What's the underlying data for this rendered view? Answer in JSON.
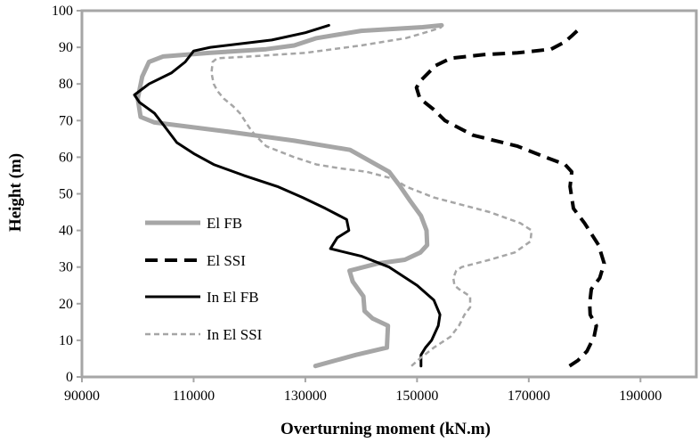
{
  "chart_data": {
    "type": "line",
    "title": "",
    "xlabel": "Overturning moment (kN.m)",
    "ylabel": "Height (m)",
    "xlim": [
      90000,
      200000
    ],
    "ylim": [
      0,
      100
    ],
    "xticks": [
      90000,
      110000,
      130000,
      150000,
      170000,
      190000
    ],
    "yticks": [
      0,
      10,
      20,
      30,
      40,
      50,
      60,
      70,
      80,
      90,
      100
    ],
    "grid": false,
    "legend_position": "left",
    "series": [
      {
        "name": "El FB",
        "color": "#a6a6a6",
        "style": "solid-thick",
        "points": [
          [
            131800,
            3
          ],
          [
            139000,
            6
          ],
          [
            144600,
            8
          ],
          [
            144800,
            14
          ],
          [
            142000,
            16
          ],
          [
            140600,
            18
          ],
          [
            140400,
            22
          ],
          [
            138500,
            26
          ],
          [
            137900,
            29
          ],
          [
            143000,
            31
          ],
          [
            147800,
            32
          ],
          [
            150600,
            34
          ],
          [
            151800,
            36
          ],
          [
            151700,
            40
          ],
          [
            150700,
            44
          ],
          [
            148800,
            48
          ],
          [
            147000,
            52
          ],
          [
            145000,
            56
          ],
          [
            138000,
            62
          ],
          [
            128000,
            64.5
          ],
          [
            116000,
            67
          ],
          [
            103000,
            69.5
          ],
          [
            100500,
            71
          ],
          [
            100000,
            76
          ],
          [
            100800,
            82
          ],
          [
            102000,
            86
          ],
          [
            104500,
            87.5
          ],
          [
            113000,
            88.5
          ],
          [
            123000,
            89.5
          ],
          [
            128000,
            90.5
          ],
          [
            132000,
            92.5
          ],
          [
            140000,
            94.5
          ],
          [
            151000,
            95.5
          ],
          [
            154400,
            96
          ]
        ]
      },
      {
        "name": "El SSI",
        "color": "#000000",
        "style": "dashed-thick",
        "points": [
          [
            177300,
            3
          ],
          [
            178800,
            4.5
          ],
          [
            180400,
            7
          ],
          [
            181700,
            11
          ],
          [
            182100,
            14
          ],
          [
            181000,
            17
          ],
          [
            180900,
            20
          ],
          [
            181200,
            24
          ],
          [
            182700,
            27
          ],
          [
            183500,
            31
          ],
          [
            182500,
            36
          ],
          [
            180000,
            42
          ],
          [
            178000,
            46
          ],
          [
            177400,
            52
          ],
          [
            177700,
            56
          ],
          [
            176500,
            58
          ],
          [
            173000,
            60
          ],
          [
            168000,
            63
          ],
          [
            160000,
            66
          ],
          [
            155000,
            70
          ],
          [
            153000,
            73
          ],
          [
            150500,
            76
          ],
          [
            149900,
            79
          ],
          [
            150700,
            81
          ],
          [
            153300,
            85
          ],
          [
            156000,
            87
          ],
          [
            162000,
            88
          ],
          [
            168000,
            88.5
          ],
          [
            174000,
            89.5
          ],
          [
            176500,
            91.5
          ],
          [
            177600,
            93
          ],
          [
            179000,
            95
          ]
        ]
      },
      {
        "name": "In El FB",
        "color": "#000000",
        "style": "solid",
        "points": [
          [
            150700,
            3
          ],
          [
            150700,
            6
          ],
          [
            151500,
            8
          ],
          [
            152600,
            10
          ],
          [
            153800,
            14
          ],
          [
            154100,
            17
          ],
          [
            153000,
            21
          ],
          [
            150000,
            25
          ],
          [
            145000,
            30
          ],
          [
            140000,
            33
          ],
          [
            134500,
            35
          ],
          [
            135700,
            38
          ],
          [
            137800,
            40
          ],
          [
            137400,
            43
          ],
          [
            133600,
            46
          ],
          [
            129500,
            49
          ],
          [
            125000,
            52
          ],
          [
            119000,
            55
          ],
          [
            113600,
            58
          ],
          [
            110000,
            61
          ],
          [
            107000,
            64
          ],
          [
            105000,
            68
          ],
          [
            103000,
            72
          ],
          [
            100300,
            75
          ],
          [
            99400,
            77
          ],
          [
            102000,
            80
          ],
          [
            106000,
            83
          ],
          [
            108500,
            86
          ],
          [
            110000,
            89
          ],
          [
            113000,
            90
          ],
          [
            124000,
            92
          ],
          [
            130000,
            94
          ],
          [
            134200,
            96
          ]
        ]
      },
      {
        "name": "In El SSI",
        "color": "#a6a6a6",
        "style": "dashed-thin",
        "points": [
          [
            149000,
            3
          ],
          [
            150500,
            5
          ],
          [
            153000,
            8
          ],
          [
            156000,
            11
          ],
          [
            157500,
            14
          ],
          [
            158500,
            17
          ],
          [
            159500,
            19
          ],
          [
            159500,
            22
          ],
          [
            157500,
            24
          ],
          [
            156700,
            25
          ],
          [
            156500,
            27
          ],
          [
            157000,
            29
          ],
          [
            158000,
            30
          ],
          [
            163000,
            32
          ],
          [
            167500,
            34
          ],
          [
            170300,
            37
          ],
          [
            170500,
            40
          ],
          [
            168500,
            42
          ],
          [
            163000,
            45
          ],
          [
            158000,
            47
          ],
          [
            153000,
            49
          ],
          [
            148000,
            52
          ],
          [
            146000,
            54
          ],
          [
            141000,
            56
          ],
          [
            136000,
            57
          ],
          [
            132000,
            58
          ],
          [
            128000,
            60
          ],
          [
            123000,
            63
          ],
          [
            121000,
            66
          ],
          [
            120000,
            68
          ],
          [
            118300,
            72
          ],
          [
            117000,
            74
          ],
          [
            115400,
            76
          ],
          [
            114300,
            78
          ],
          [
            113600,
            80
          ],
          [
            113200,
            83
          ],
          [
            113400,
            86
          ],
          [
            114200,
            87
          ],
          [
            120000,
            87.5
          ],
          [
            130000,
            88.5
          ],
          [
            140000,
            90.5
          ],
          [
            148000,
            92.5
          ],
          [
            152500,
            94.5
          ],
          [
            154400,
            95.5
          ]
        ]
      }
    ]
  }
}
